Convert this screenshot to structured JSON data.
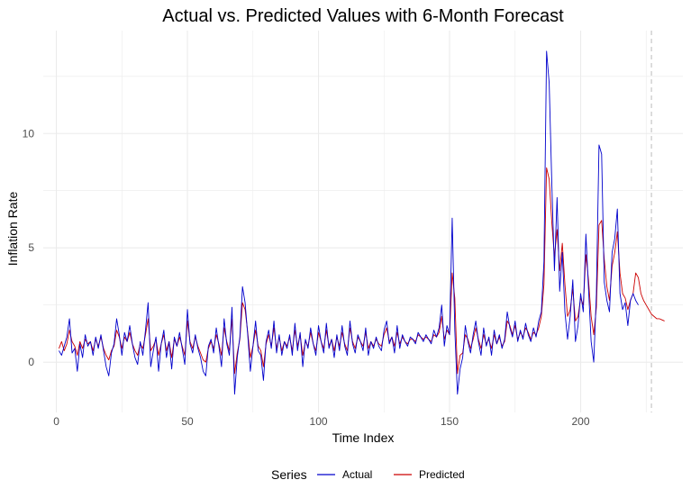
{
  "chart_data": {
    "type": "line",
    "title": "Actual vs. Predicted Values with 6-Month Forecast",
    "xlabel": "Time Index",
    "ylabel": "Inflation Rate",
    "xlim": [
      -5,
      239
    ],
    "ylim": [
      -2.2,
      14.5
    ],
    "x_ticks": [
      0,
      50,
      100,
      150,
      200
    ],
    "y_ticks": [
      0,
      5,
      10
    ],
    "grid": true,
    "forecast_start": 227,
    "legend": {
      "title": "Series",
      "position": "bottom"
    },
    "colors": {
      "Actual": "#0000cc",
      "Predicted": "#cc0000",
      "forecast_line": "#bbbbbb",
      "grid": "#ebebeb"
    },
    "series": [
      {
        "name": "Actual",
        "color": "#0000cc",
        "x_start": 1,
        "values": [
          0.5,
          0.3,
          0.7,
          1.1,
          1.9,
          0.4,
          0.6,
          -0.4,
          0.8,
          0.2,
          1.2,
          0.7,
          0.9,
          0.3,
          1.1,
          0.6,
          1.2,
          0.5,
          -0.2,
          -0.6,
          0.4,
          0.8,
          1.9,
          1.2,
          0.3,
          1.3,
          0.9,
          1.6,
          0.8,
          0.2,
          -0.1,
          0.9,
          0.3,
          1.4,
          2.6,
          -0.2,
          0.5,
          1.1,
          -0.4,
          0.8,
          1.4,
          0.2,
          0.9,
          -0.3,
          1.1,
          0.7,
          1.3,
          0.6,
          -0.1,
          2.3,
          0.8,
          0.4,
          1.2,
          0.6,
          0.2,
          -0.4,
          -0.6,
          0.7,
          1.0,
          0.4,
          1.5,
          0.7,
          -0.2,
          1.9,
          0.8,
          0.3,
          2.4,
          -1.4,
          0.2,
          1.1,
          3.3,
          2.6,
          1.2,
          -0.4,
          0.7,
          1.8,
          0.5,
          0.3,
          -0.8,
          0.9,
          1.4,
          0.6,
          1.8,
          0.4,
          1.2,
          0.3,
          0.9,
          0.6,
          1.2,
          0.3,
          1.7,
          0.5,
          1.3,
          -0.2,
          1.0,
          0.6,
          1.5,
          0.8,
          0.3,
          1.6,
          0.9,
          0.4,
          1.7,
          0.6,
          1.0,
          0.2,
          1.2,
          0.5,
          1.6,
          0.7,
          0.3,
          1.8,
          0.8,
          0.4,
          1.2,
          0.9,
          0.5,
          1.5,
          0.3,
          0.9,
          0.6,
          1.1,
          0.7,
          0.5,
          1.4,
          1.8,
          0.8,
          1.1,
          0.4,
          1.6,
          0.6,
          1.2,
          0.9,
          0.7,
          1.1,
          1.0,
          0.8,
          1.3,
          1.1,
          0.9,
          1.2,
          1.0,
          0.8,
          1.4,
          1.1,
          1.5,
          2.5,
          0.7,
          1.6,
          1.2,
          6.3,
          1.4,
          -1.4,
          -0.3,
          0.2,
          1.6,
          0.9,
          0.4,
          1.2,
          1.8,
          0.9,
          0.3,
          1.5,
          0.7,
          1.1,
          0.3,
          1.4,
          0.8,
          1.2,
          0.6,
          1.0,
          2.2,
          1.5,
          1.1,
          1.8,
          0.9,
          1.4,
          1.0,
          1.7,
          1.2,
          0.9,
          1.5,
          1.1,
          1.8,
          2.2,
          4.4,
          13.6,
          12.2,
          7.8,
          4.0,
          7.2,
          3.1,
          4.8,
          2.2,
          1.0,
          2.0,
          3.6,
          0.9,
          1.6,
          3.0,
          2.2,
          5.6,
          3.2,
          0.9,
          0.0,
          3.0,
          9.5,
          9.1,
          3.5,
          2.7,
          2.2,
          4.8,
          5.4,
          6.7,
          3.0,
          2.3,
          2.6,
          1.6,
          2.7,
          3.0,
          2.7,
          2.5
        ]
      },
      {
        "name": "Predicted",
        "color": "#cc0000",
        "x_start": 1,
        "values": [
          0.6,
          0.9,
          0.5,
          0.8,
          1.4,
          0.9,
          0.7,
          0.3,
          0.9,
          0.6,
          1.0,
          0.8,
          0.9,
          0.5,
          1.0,
          0.7,
          1.1,
          0.6,
          0.3,
          0.1,
          0.5,
          0.7,
          1.4,
          1.1,
          0.6,
          1.1,
          0.9,
          1.3,
          0.8,
          0.5,
          0.3,
          0.8,
          0.6,
          1.2,
          1.9,
          0.5,
          0.7,
          1.0,
          0.3,
          0.8,
          1.2,
          0.5,
          0.9,
          0.2,
          1.0,
          0.7,
          1.1,
          0.7,
          0.3,
          1.8,
          0.9,
          0.6,
          1.1,
          0.7,
          0.4,
          0.1,
          0.0,
          0.6,
          0.9,
          0.6,
          1.2,
          0.8,
          0.3,
          1.5,
          0.9,
          0.5,
          1.9,
          -0.5,
          0.4,
          1.0,
          2.6,
          2.3,
          1.3,
          0.2,
          0.7,
          1.4,
          0.7,
          0.5,
          -0.2,
          0.8,
          1.2,
          0.7,
          1.5,
          0.6,
          1.1,
          0.5,
          0.9,
          0.7,
          1.1,
          0.5,
          1.4,
          0.7,
          1.2,
          0.3,
          0.9,
          0.7,
          1.3,
          0.8,
          0.5,
          1.3,
          0.9,
          0.6,
          1.4,
          0.7,
          1.0,
          0.5,
          1.1,
          0.7,
          1.3,
          0.8,
          0.5,
          1.5,
          0.9,
          0.6,
          1.1,
          0.9,
          0.7,
          1.3,
          0.6,
          0.9,
          0.7,
          1.0,
          0.8,
          0.7,
          1.2,
          1.5,
          0.9,
          1.1,
          0.7,
          1.3,
          0.8,
          1.1,
          0.9,
          0.8,
          1.0,
          1.0,
          0.9,
          1.2,
          1.1,
          1.0,
          1.1,
          1.0,
          0.9,
          1.2,
          1.1,
          1.3,
          2.0,
          1.0,
          1.4,
          1.2,
          3.9,
          2.8,
          -0.5,
          0.3,
          0.4,
          1.2,
          1.0,
          0.6,
          1.0,
          1.5,
          1.0,
          0.6,
          1.2,
          0.8,
          1.0,
          0.6,
          1.2,
          0.8,
          1.1,
          0.7,
          0.9,
          1.8,
          1.6,
          1.2,
          1.6,
          1.0,
          1.3,
          1.1,
          1.5,
          1.3,
          1.0,
          1.3,
          1.2,
          1.5,
          2.0,
          3.4,
          8.5,
          8.0,
          6.1,
          4.6,
          5.8,
          4.0,
          5.2,
          3.4,
          2.0,
          2.3,
          3.2,
          1.8,
          2.0,
          2.8,
          2.5,
          4.7,
          3.6,
          2.0,
          1.2,
          2.4,
          6.0,
          6.2,
          4.5,
          3.3,
          2.7,
          4.2,
          4.8,
          5.7,
          3.9,
          3.0,
          2.8,
          2.3,
          2.7,
          3.0,
          3.9,
          3.7,
          3.0,
          2.7,
          2.5,
          2.3,
          2.1,
          2.0,
          1.9,
          1.9,
          1.85,
          1.8
        ]
      }
    ]
  }
}
